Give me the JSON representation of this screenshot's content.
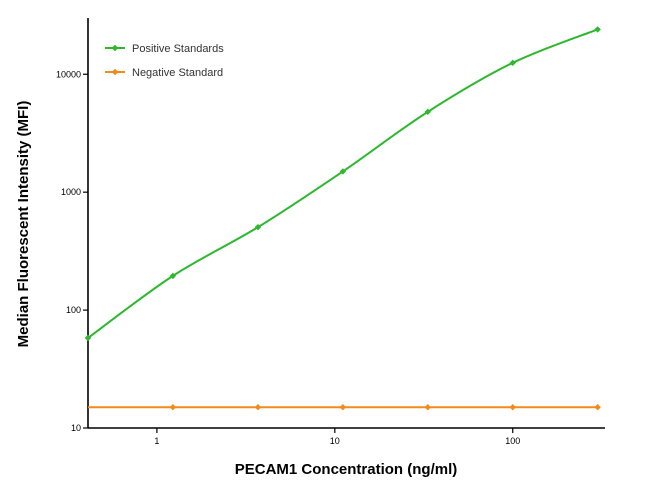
{
  "chart_data": {
    "type": "line",
    "xlabel": "PECAM1 Concentration (ng/ml)",
    "ylabel": "Median  Fluorescent Intensity  (MFI)",
    "xscale": "log",
    "yscale": "log",
    "xlim": [
      0.41,
      330
    ],
    "ylim": [
      10,
      30000
    ],
    "xticks": [
      1,
      10,
      100
    ],
    "xtick_labels": [
      "1",
      "10",
      "100"
    ],
    "yticks": [
      10,
      100,
      1000,
      10000
    ],
    "ytick_labels": [
      "10",
      "100",
      "1000",
      "10000"
    ],
    "grid": false,
    "legend_position": "top-left",
    "series": [
      {
        "name": "Positive Standards",
        "color": "#2db82d",
        "marker": "diamond",
        "x": [
          0.41,
          1.23,
          3.7,
          11.1,
          33.3,
          100,
          300
        ],
        "y": [
          58,
          195,
          505,
          1500,
          4800,
          12500,
          24000
        ]
      },
      {
        "name": "Negative Standard",
        "color": "#f08a1c",
        "marker": "diamond",
        "x": [
          1.23,
          3.7,
          11.1,
          33.3,
          100,
          300
        ],
        "y": [
          15,
          15,
          15,
          15,
          15,
          15
        ]
      }
    ]
  }
}
